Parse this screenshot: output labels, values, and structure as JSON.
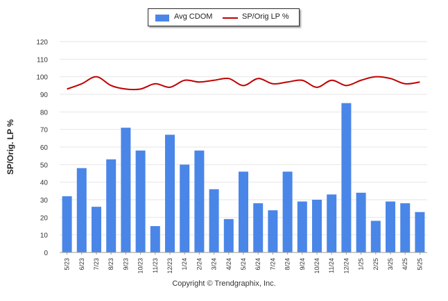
{
  "legend": {
    "bar_label": "Avg CDOM",
    "line_label": "SP/Orig LP %"
  },
  "footer": {
    "copyright": "Copyright © Trendgraphix, Inc."
  },
  "colors": {
    "bar": "#4a86e8",
    "line": "#c00000",
    "grid": "#e6e6e6"
  },
  "chart_data": {
    "type": "bar",
    "ylabel": "SP/Orig. LP %",
    "xlabel": "",
    "ylim": [
      0,
      120
    ],
    "yticks": [
      0,
      10,
      20,
      30,
      40,
      50,
      60,
      70,
      80,
      90,
      100,
      110,
      120
    ],
    "grid": true,
    "legend_position": "top-center",
    "categories": [
      "5/23",
      "6/23",
      "7/23",
      "8/23",
      "9/23",
      "10/23",
      "11/23",
      "12/23",
      "1/24",
      "2/24",
      "3/24",
      "4/24",
      "5/24",
      "6/24",
      "7/24",
      "8/24",
      "9/24",
      "10/24",
      "11/24",
      "12/24",
      "1/25",
      "2/25",
      "3/25",
      "4/25",
      "5/25"
    ],
    "series": [
      {
        "name": "Avg CDOM",
        "type": "bar",
        "values": [
          32,
          48,
          26,
          53,
          71,
          58,
          15,
          67,
          50,
          58,
          36,
          19,
          46,
          28,
          24,
          46,
          29,
          30,
          33,
          85,
          34,
          18,
          29,
          28,
          23
        ]
      },
      {
        "name": "SP/Orig LP %",
        "type": "line",
        "values": [
          93,
          96,
          100,
          95,
          93,
          93,
          96,
          94,
          98,
          97,
          98,
          99,
          95,
          99,
          96,
          97,
          98,
          94,
          98,
          95,
          98,
          100,
          99,
          96,
          97
        ]
      }
    ]
  }
}
